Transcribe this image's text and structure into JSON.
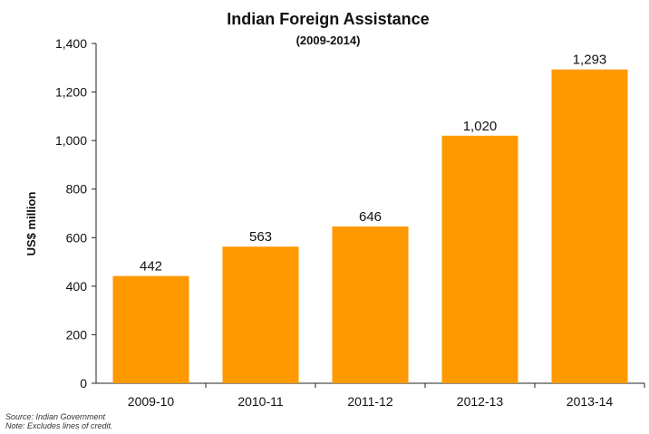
{
  "chart_data": {
    "type": "bar",
    "title": "Indian Foreign Assistance",
    "subtitle": "(2009-2014)",
    "ylabel": "US$ million",
    "xlabel": "",
    "categories": [
      "2009-10",
      "2010-11",
      "2011-12",
      "2012-13",
      "2013-14"
    ],
    "values": [
      442,
      563,
      646,
      1020,
      1293
    ],
    "value_labels": [
      "442",
      "563",
      "646",
      "1,020",
      "1,293"
    ],
    "ylim": [
      0,
      1400
    ],
    "yticks": [
      0,
      200,
      400,
      600,
      800,
      1000,
      1200,
      1400
    ],
    "ytick_labels": [
      "0",
      "200",
      "400",
      "600",
      "800",
      "1,000",
      "1,200",
      "1,400"
    ],
    "grid": false,
    "bar_color": "#FF9900"
  },
  "notes": {
    "source": "Source: Indian Government",
    "note": "Note: Excludes lines of credit."
  }
}
